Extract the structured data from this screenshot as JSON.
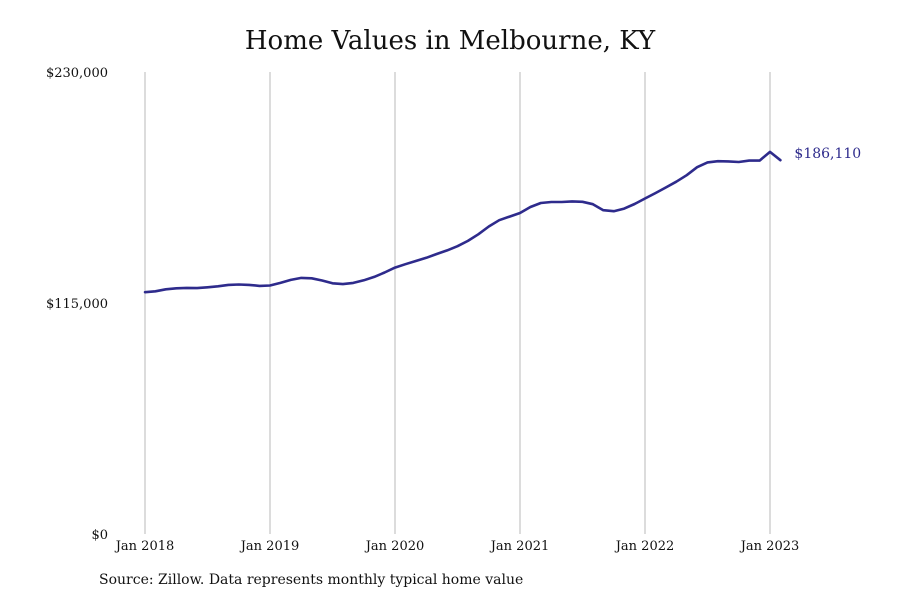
{
  "chart_data": {
    "type": "line",
    "title": "Home Values in Melbourne, KY",
    "xlabel": "",
    "ylabel": "",
    "ylim": [
      0,
      230000
    ],
    "y_ticks": [
      {
        "value": 0,
        "label": "$0"
      },
      {
        "value": 115000,
        "label": "$115,000"
      },
      {
        "value": 230000,
        "label": "$230,000"
      }
    ],
    "x_ticks": [
      {
        "value": "2018-01",
        "label": "Jan 2018"
      },
      {
        "value": "2019-01",
        "label": "Jan 2019"
      },
      {
        "value": "2020-01",
        "label": "Jan 2020"
      },
      {
        "value": "2021-01",
        "label": "Jan 2021"
      },
      {
        "value": "2022-01",
        "label": "Jan 2022"
      },
      {
        "value": "2023-01",
        "label": "Jan 2023"
      }
    ],
    "x_range": [
      "2018-01",
      "2023-01"
    ],
    "grid": "vertical",
    "line_color": "#2e2b8c",
    "series": [
      {
        "x": [
          "2018-01",
          "2018-02",
          "2018-03",
          "2018-04",
          "2018-05",
          "2018-06",
          "2018-07",
          "2018-08",
          "2018-09",
          "2018-10",
          "2018-11",
          "2018-12",
          "2019-01",
          "2019-02",
          "2019-03",
          "2019-04",
          "2019-05",
          "2019-06",
          "2019-07",
          "2019-08",
          "2019-09",
          "2019-10",
          "2019-11",
          "2019-12",
          "2020-01",
          "2020-02",
          "2020-03",
          "2020-04",
          "2020-05",
          "2020-06",
          "2020-07",
          "2020-08",
          "2020-09",
          "2020-10",
          "2020-11",
          "2020-12",
          "2021-01",
          "2021-02",
          "2021-03",
          "2021-04",
          "2021-05",
          "2021-06",
          "2021-07",
          "2021-08",
          "2021-09",
          "2021-10",
          "2021-11",
          "2021-12",
          "2022-01",
          "2022-02",
          "2022-03",
          "2022-04",
          "2022-05",
          "2022-06",
          "2022-07",
          "2022-08",
          "2022-09",
          "2022-10",
          "2022-11",
          "2022-12",
          "2023-01",
          "2023-02"
        ],
        "values": [
          120400,
          120800,
          121800,
          122300,
          122500,
          122400,
          122800,
          123300,
          124000,
          124200,
          124000,
          123500,
          123700,
          125000,
          126500,
          127500,
          127300,
          126200,
          124800,
          124400,
          125000,
          126300,
          128000,
          130200,
          132600,
          134300,
          135900,
          137500,
          139400,
          141200,
          143300,
          145900,
          149200,
          153100,
          156200,
          158000,
          159800,
          162800,
          164800,
          165300,
          165300,
          165600,
          165400,
          164200,
          161200,
          160700,
          162000,
          164300,
          167000,
          169700,
          172500,
          175400,
          178600,
          182600,
          185000,
          185600,
          185500,
          185200,
          185900,
          185900,
          190200,
          186110
        ],
        "end_label": "$186,110"
      }
    ]
  },
  "footer": {
    "source": "Source: Zillow. Data represents monthly typical home value"
  }
}
